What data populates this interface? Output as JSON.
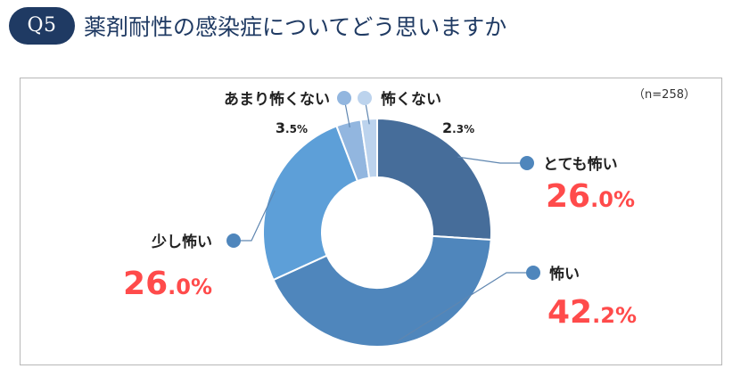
{
  "question": {
    "badge": "Q5",
    "title": "薬剤耐性の感染症についてどう思いますか"
  },
  "chart_data": {
    "type": "donut",
    "note": "（n=258）",
    "unit": "%",
    "categories": [
      "とても怖い",
      "怖い",
      "少し怖い",
      "あまり怖くない",
      "怖くない"
    ],
    "values": [
      26.0,
      42.2,
      26.0,
      3.5,
      2.3
    ],
    "labels": [
      {
        "category": "とても怖い",
        "int": "26",
        "dec": ".0",
        "pct": "%"
      },
      {
        "category": "怖い",
        "int": "42",
        "dec": ".2",
        "pct": "%"
      },
      {
        "category": "少し怖い",
        "int": "26",
        "dec": ".0",
        "pct": "%"
      },
      {
        "category": "あまり怖くない",
        "int": "3",
        "dec": ".5",
        "pct": "%"
      },
      {
        "category": "怖くない",
        "int": "2",
        "dec": ".3",
        "pct": "%"
      }
    ],
    "colors": [
      "#466d9a",
      "#4f86bc",
      "#5d9fd8",
      "#92b6df",
      "#bcd3ed"
    ],
    "highlight_color": "#ff4b4b",
    "small_label_color": "#222222"
  }
}
